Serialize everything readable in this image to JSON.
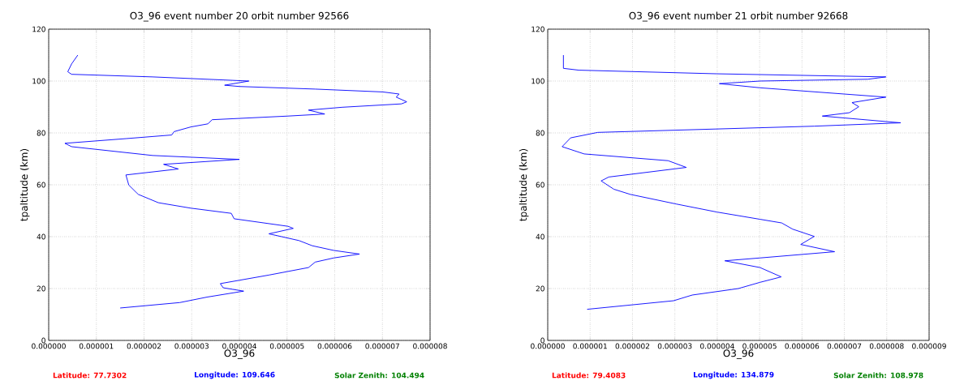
{
  "chart_data": [
    {
      "type": "line",
      "title": "O3_96 event number 20 orbit number 92566",
      "xlabel": "O3_96",
      "ylabel": "tpaltitude (km)",
      "xlim": [
        0,
        8e-06
      ],
      "ylim": [
        0,
        120
      ],
      "xticks": [
        {
          "value": 0,
          "label": "0.000000"
        },
        {
          "value": 1e-06,
          "label": "0.000001"
        },
        {
          "value": 2e-06,
          "label": "0.000002"
        },
        {
          "value": 3e-06,
          "label": "0.000003"
        },
        {
          "value": 4e-06,
          "label": "0.000004"
        },
        {
          "value": 5e-06,
          "label": "0.000005"
        },
        {
          "value": 6e-06,
          "label": "0.000006"
        },
        {
          "value": 7e-06,
          "label": "0.000007"
        },
        {
          "value": 8e-06,
          "label": "0.000008"
        }
      ],
      "yticks": [
        0,
        20,
        40,
        60,
        80,
        100,
        120
      ],
      "grid": true,
      "marker": "none",
      "line_style": "solid",
      "annotations": [
        "Latitude: 77.7302",
        "Longitude: 109.646",
        "Solar Zenith: 104.494"
      ],
      "series": [
        {
          "color": "#0000ff",
          "x": [
            6.1e-07,
            4.8e-07,
            4e-07,
            4.8e-07,
            2.18e-06,
            4.2e-06,
            3.69e-06,
            4e-06,
            5.59e-06,
            7.01e-06,
            7.35e-06,
            7.29e-06,
            7.51e-06,
            7.4e-06,
            6.16e-06,
            5.45e-06,
            5.79e-06,
            5.02e-06,
            3.43e-06,
            3.34e-06,
            2.98e-06,
            2.63e-06,
            2.58e-06,
            1.62e-06,
            3.4e-07,
            4.8e-07,
            2.18e-06,
            4e-06,
            2.41e-06,
            2.72e-06,
            1.62e-06,
            1.68e-06,
            1.84e-06,
            1.88e-06,
            2.3e-06,
            2.98e-06,
            3.83e-06,
            3.89e-06,
            5.02e-06,
            5.13e-06,
            4.62e-06,
            5.25e-06,
            5.53e-06,
            5.98e-06,
            6.52e-06,
            5.98e-06,
            5.59e-06,
            5.45e-06,
            4.62e-06,
            3.6e-06,
            3.66e-06,
            4.09e-06,
            3.32e-06,
            2.75e-06,
            1.5e-06
          ],
          "values": [
            110,
            106.6,
            103.6,
            102.6,
            101.6,
            100.0,
            98.4,
            97.9,
            96.9,
            95.8,
            95.0,
            93.8,
            92.0,
            91.2,
            89.9,
            88.8,
            87.3,
            86.5,
            85.1,
            83.5,
            82.3,
            80.5,
            79.2,
            77.8,
            76.0,
            74.7,
            71.3,
            69.8,
            67.9,
            66.1,
            63.8,
            59.9,
            57.0,
            56.3,
            53.1,
            51.0,
            49.0,
            46.9,
            44.0,
            43.2,
            41.1,
            38.5,
            36.5,
            34.7,
            33.3,
            31.8,
            30.2,
            28.1,
            25.2,
            21.9,
            20.3,
            19.0,
            16.7,
            14.6,
            12.5
          ]
        }
      ]
    },
    {
      "type": "line",
      "title": "O3_96 event number 21 orbit number 92668",
      "xlabel": "O3_96",
      "ylabel": "tpaltitude (km)",
      "xlim": [
        0,
        9e-06
      ],
      "ylim": [
        0,
        120
      ],
      "xticks": [
        {
          "value": 0,
          "label": "0.000000"
        },
        {
          "value": 1e-06,
          "label": "0.000001"
        },
        {
          "value": 2e-06,
          "label": "0.000002"
        },
        {
          "value": 3e-06,
          "label": "0.000003"
        },
        {
          "value": 4e-06,
          "label": "0.000004"
        },
        {
          "value": 5e-06,
          "label": "0.000005"
        },
        {
          "value": 6e-06,
          "label": "0.000006"
        },
        {
          "value": 7e-06,
          "label": "0.000007"
        },
        {
          "value": 8e-06,
          "label": "0.000008"
        },
        {
          "value": 9e-06,
          "label": "0.000009"
        }
      ],
      "yticks": [
        0,
        20,
        40,
        60,
        80,
        100,
        120
      ],
      "grid": true,
      "marker": "none",
      "line_style": "solid",
      "annotations": [
        "Latitude: 79.4083",
        "Longitude: 134.879",
        "Solar Zenith: 108.978"
      ],
      "series": [
        {
          "color": "#0000ff",
          "x": [
            3.7e-07,
            3.7e-07,
            7.3e-07,
            3.99e-06,
            7.98e-06,
            7.56e-06,
            5.01e-06,
            4.05e-06,
            5.01e-06,
            7.98e-06,
            7.18e-06,
            7.34e-06,
            7.12e-06,
            6.48e-06,
            8.33e-06,
            6.29e-06,
            1.18e-06,
            5.4e-07,
            3.4e-07,
            8.6e-07,
            2.84e-06,
            3.27e-06,
            1.44e-06,
            1.26e-06,
            1.56e-06,
            1.95e-06,
            3.03e-06,
            3.99e-06,
            5.01e-06,
            5.52e-06,
            5.78e-06,
            6.29e-06,
            5.97e-06,
            6.77e-06,
            5.01e-06,
            4.18e-06,
            5.01e-06,
            5.51e-06,
            5.01e-06,
            4.5e-06,
            3.41e-06,
            2.97e-06,
            9.3e-07
          ],
          "values": [
            110,
            104.9,
            104.2,
            102.8,
            101.6,
            100.7,
            100.0,
            99.0,
            97.4,
            93.8,
            91.7,
            90.1,
            87.8,
            86.5,
            83.9,
            82.6,
            80.2,
            78.1,
            74.7,
            71.9,
            69.3,
            66.7,
            63.0,
            61.5,
            58.3,
            56.3,
            52.6,
            49.5,
            46.7,
            45.3,
            42.9,
            40.1,
            37.0,
            34.2,
            31.8,
            30.7,
            28.1,
            24.5,
            22.4,
            20.0,
            17.5,
            15.3,
            12.0
          ]
        }
      ]
    }
  ]
}
